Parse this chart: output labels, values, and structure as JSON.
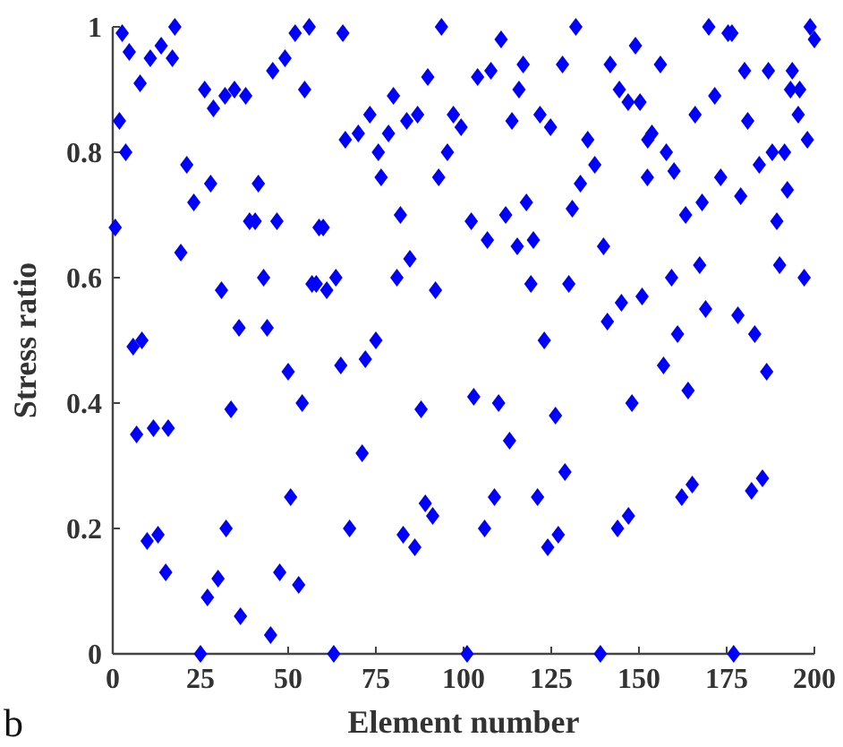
{
  "chart_data": {
    "type": "scatter",
    "xlabel": "Element number",
    "ylabel": "Stress ratio",
    "annotations": [
      "b"
    ],
    "marker": "diamond",
    "grid": false,
    "xlim": [
      0,
      200
    ],
    "xticks": [
      0,
      25,
      50,
      75,
      100,
      125,
      150,
      175,
      200
    ],
    "ylim": [
      0,
      1
    ],
    "yticks": [
      0,
      0.2,
      0.4,
      0.6,
      0.8,
      1
    ],
    "series": [
      {
        "color": "#0000ff",
        "x": [
          2.7,
          4.7,
          1.9,
          3.7,
          0.7,
          7.8,
          10.7,
          13.8,
          17,
          17.7,
          5.8,
          8.3,
          6.8,
          11.6,
          15.8,
          9.8,
          12.9,
          15.1,
          21.1,
          23.1,
          19.4,
          26.2,
          28.7,
          32,
          34.7,
          37.9,
          27.9,
          31,
          36,
          33.7,
          32.3,
          30,
          27,
          36.4,
          25,
          41.5,
          39,
          40.6,
          46.8,
          43,
          44,
          45,
          45.6,
          49.1,
          52,
          56,
          54.7,
          50,
          54,
          50.7,
          47.6,
          53,
          56.8,
          58.8,
          60,
          58,
          61,
          63.6,
          63,
          65,
          65.6,
          66.3,
          67.5,
          93.7,
          110.7,
          132,
          70,
          73.3,
          80,
          78.6,
          75.7,
          76.5,
          83.8,
          86.9,
          89.8,
          97.1,
          99.3,
          95.4,
          92.9,
          104,
          107.8,
          117,
          115.8,
          113.8,
          121.8,
          124.8,
          128.2,
          82,
          102.2,
          106.8,
          112,
          117.9,
          115.3,
          119.9,
          81,
          84.7,
          92,
          119.2,
          130,
          75,
          72,
          123,
          87.9,
          102.9,
          110,
          126.2,
          71.1,
          113.1,
          128.9,
          89.1,
          91.2,
          108.8,
          121.1,
          82.8,
          86.1,
          106,
          124,
          127,
          101,
          169.9,
          175.4,
          176.5,
          198.8,
          200,
          149,
          141.8,
          156.1,
          180.1,
          186.9,
          193.7,
          144.4,
          146.9,
          150.3,
          171.6,
          193.2,
          195.8,
          166,
          181,
          195.4,
          198,
          135.4,
          153.7,
          152.5,
          137.4,
          157.8,
          160,
          184.3,
          188,
          191.5,
          133.3,
          152.4,
          173.3,
          179,
          192.3,
          131,
          168,
          163.3,
          189.3,
          139.9,
          159.3,
          167.3,
          190.1,
          197.1,
          150.9,
          145,
          141,
          169,
          178.2,
          161,
          183,
          157,
          164,
          186.4,
          148,
          165.2,
          162.2,
          185.2,
          182.1,
          143.9,
          147,
          139,
          177
        ],
        "values": [
          0.99,
          0.96,
          0.85,
          0.8,
          0.68,
          0.91,
          0.95,
          0.97,
          0.95,
          1.0,
          0.49,
          0.5,
          0.35,
          0.36,
          0.36,
          0.18,
          0.19,
          0.13,
          0.78,
          0.72,
          0.64,
          0.9,
          0.87,
          0.89,
          0.9,
          0.89,
          0.75,
          0.58,
          0.52,
          0.39,
          0.2,
          0.12,
          0.09,
          0.06,
          0,
          0.75,
          0.69,
          0.69,
          0.69,
          0.6,
          0.52,
          0.03,
          0.93,
          0.95,
          0.99,
          1.0,
          0.9,
          0.45,
          0.4,
          0.25,
          0.13,
          0.11,
          0.59,
          0.68,
          0.68,
          0.59,
          0.58,
          0.6,
          0,
          0.46,
          0.99,
          0.82,
          0.2,
          1.0,
          0.98,
          1.0,
          0.83,
          0.86,
          0.89,
          0.83,
          0.8,
          0.76,
          0.85,
          0.86,
          0.92,
          0.86,
          0.84,
          0.8,
          0.76,
          0.92,
          0.93,
          0.94,
          0.9,
          0.85,
          0.86,
          0.84,
          0.94,
          0.7,
          0.69,
          0.66,
          0.7,
          0.72,
          0.65,
          0.66,
          0.6,
          0.63,
          0.58,
          0.59,
          0.59,
          0.5,
          0.47,
          0.5,
          0.39,
          0.41,
          0.4,
          0.38,
          0.32,
          0.34,
          0.29,
          0.24,
          0.22,
          0.25,
          0.25,
          0.19,
          0.17,
          0.2,
          0.17,
          0.19,
          0,
          1.0,
          0.99,
          0.99,
          1.0,
          0.98,
          0.97,
          0.94,
          0.94,
          0.93,
          0.93,
          0.93,
          0.9,
          0.88,
          0.88,
          0.89,
          0.9,
          0.9,
          0.86,
          0.85,
          0.86,
          0.82,
          0.82,
          0.83,
          0.82,
          0.78,
          0.8,
          0.77,
          0.78,
          0.8,
          0.8,
          0.75,
          0.76,
          0.76,
          0.73,
          0.74,
          0.71,
          0.72,
          0.7,
          0.69,
          0.65,
          0.6,
          0.62,
          0.62,
          0.6,
          0.57,
          0.56,
          0.53,
          0.55,
          0.54,
          0.51,
          0.51,
          0.46,
          0.42,
          0.45,
          0.4,
          0.27,
          0.25,
          0.28,
          0.26,
          0.2,
          0.22,
          0,
          0
        ]
      }
    ]
  }
}
